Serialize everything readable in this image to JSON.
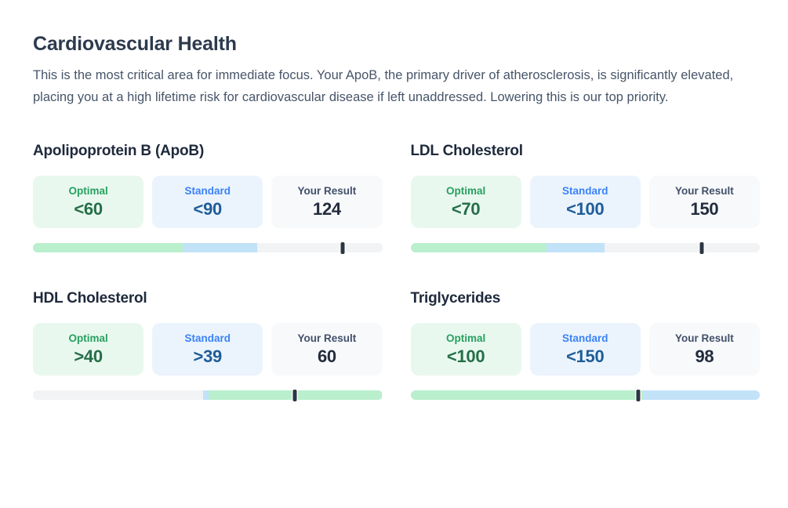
{
  "page": {
    "title": "Cardiovascular Health",
    "description": "This is the most critical area for immediate focus. Your ApoB, the primary driver of atherosclerosis, is significantly elevated, placing you at a high lifetime risk for cardiovascular disease if left unaddressed. Lowering this is our top priority."
  },
  "labels": {
    "optimal": "Optimal",
    "standard": "Standard",
    "your_result": "Your Result"
  },
  "metrics": [
    {
      "name": "Apolipoprotein B (ApoB)",
      "optimal": "<60",
      "standard": "<90",
      "result": "124",
      "bar": {
        "segments": [
          {
            "color": "green",
            "width_pct": 42.9
          },
          {
            "color": "blue",
            "width_pct": 21.4
          },
          {
            "color": "gray",
            "width_pct": 35.7
          }
        ],
        "marker_pct": 88.6
      }
    },
    {
      "name": "LDL Cholesterol",
      "optimal": "<70",
      "standard": "<100",
      "result": "150",
      "bar": {
        "segments": [
          {
            "color": "green",
            "width_pct": 38.9
          },
          {
            "color": "blue",
            "width_pct": 16.7
          },
          {
            "color": "gray",
            "width_pct": 44.4
          }
        ],
        "marker_pct": 83.3
      }
    },
    {
      "name": "HDL Cholesterol",
      "optimal": ">40",
      "standard": ">39",
      "result": "60",
      "bar": {
        "segments": [
          {
            "color": "gray",
            "width_pct": 48.8
          },
          {
            "color": "blue",
            "width_pct": 1.5
          },
          {
            "color": "green",
            "width_pct": 49.7
          }
        ],
        "marker_pct": 75.0
      }
    },
    {
      "name": "Triglycerides",
      "optimal": "<100",
      "standard": "<150",
      "result": "98",
      "bar": {
        "segments": [
          {
            "color": "green",
            "width_pct": 66.7
          },
          {
            "color": "blue",
            "width_pct": 33.3
          }
        ],
        "marker_pct": 65.3
      }
    }
  ],
  "colors": {
    "title_text": "#2d3a4e",
    "heading_text": "#1e293b",
    "body_text": "#475569",
    "optimal_bg": "#e9f8ef",
    "optimal_label": "#27a05f",
    "optimal_value": "#256e48",
    "standard_bg": "#ebf4fd",
    "standard_label": "#3b82f6",
    "standard_value": "#1f5d99",
    "result_bg": "#f7f9fb",
    "result_label": "#42506a",
    "result_value": "#232c3d",
    "bar": {
      "green": "#b9efcd",
      "blue": "#c2e2f8",
      "gray": "#f1f3f5",
      "marker": "#2b3544"
    }
  }
}
